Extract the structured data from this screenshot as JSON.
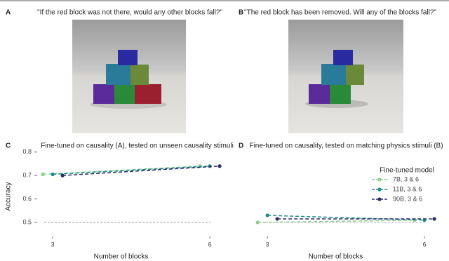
{
  "panels": [
    {
      "label": "A",
      "caption": "\"If the red block was not there, would any other blocks fall?\""
    },
    {
      "label": "B",
      "caption": "\"The red block has been removed. Will any of the blocks fall?\""
    }
  ],
  "chart_data": [
    {
      "type": "line",
      "panel_label": "C",
      "title": "Fine-tuned on causality (A), tested on unseen causality stimuli",
      "x_label": "Number of blocks",
      "y_label": "Accuracy",
      "x": [
        3,
        6
      ],
      "xticks": [
        3,
        6
      ],
      "xlim": [
        2.73,
        6.28
      ],
      "ylim": [
        0.45,
        0.835
      ],
      "yticks": [
        0.5,
        0.6,
        0.7,
        0.8
      ],
      "chance": 0.5,
      "series": [
        {
          "name": "7B, 3 & 6",
          "color": "#8fcf8f",
          "values": [
            0.705,
            0.74
          ]
        },
        {
          "name": "11B, 3 & 6",
          "color": "#1f8a8a",
          "values": [
            0.705,
            0.74
          ]
        },
        {
          "name": "90B, 3 & 6",
          "color": "#2a2f6b",
          "values": [
            0.7,
            0.74
          ]
        }
      ]
    },
    {
      "type": "line",
      "panel_label": "D",
      "title": "Fine-tuned on causality, tested on matching physics stimuli (B)",
      "x_label": "Number of blocks",
      "legend_title": "Fine-tuned model",
      "legend": "right",
      "x": [
        3,
        6
      ],
      "xticks": [
        3,
        6
      ],
      "xlim": [
        2.73,
        6.28
      ],
      "ylim": [
        0.45,
        0.835
      ],
      "chance": 0.5,
      "series": [
        {
          "name": "7B, 3 & 6",
          "color": "#8fcf8f",
          "values": [
            0.5,
            0.51
          ]
        },
        {
          "name": "11B, 3 & 6",
          "color": "#1f8a8a",
          "values": [
            0.53,
            0.51
          ]
        },
        {
          "name": "90B, 3 & 6",
          "color": "#2a2f6b",
          "values": [
            0.515,
            0.515
          ]
        }
      ]
    }
  ]
}
